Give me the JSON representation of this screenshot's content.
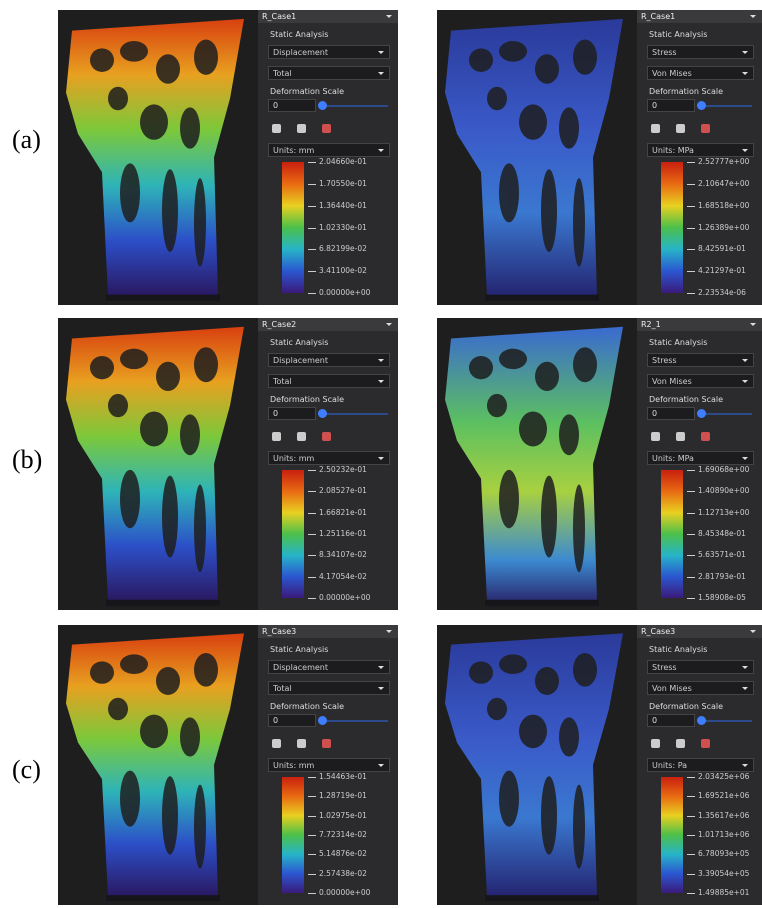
{
  "rows": [
    {
      "label": "(a)",
      "panels": [
        {
          "case": "R_Case1",
          "analysis": "Static Analysis",
          "result": "Displacement",
          "component": "Total",
          "deformation_label": "Deformation Scale",
          "deformation_value": "0",
          "units": "Units: mm",
          "legend": [
            "2.04660e-01",
            "1.70550e-01",
            "1.36440e-01",
            "1.02330e-01",
            "6.82199e-02",
            "3.41100e-02",
            "0.00000e+00"
          ]
        },
        {
          "case": "R_Case1",
          "analysis": "Static Analysis",
          "result": "Stress",
          "component": "Von Mises",
          "deformation_label": "Deformation Scale",
          "deformation_value": "0",
          "units": "Units: MPa",
          "legend": [
            "2.52777e+00",
            "2.10647e+00",
            "1.68518e+00",
            "1.26389e+00",
            "8.42591e-01",
            "4.21297e-01",
            "2.23534e-06"
          ]
        }
      ]
    },
    {
      "label": "(b)",
      "panels": [
        {
          "case": "R_Case2",
          "analysis": "Static Analysis",
          "result": "Displacement",
          "component": "Total",
          "deformation_label": "Deformation Scale",
          "deformation_value": "0",
          "units": "Units: mm",
          "legend": [
            "2.50232e-01",
            "2.08527e-01",
            "1.66821e-01",
            "1.25116e-01",
            "8.34107e-02",
            "4.17054e-02",
            "0.00000e+00"
          ]
        },
        {
          "case": "R2_1",
          "analysis": "Static Analysis",
          "result": "Stress",
          "component": "Von Mises",
          "deformation_label": "Deformation Scale",
          "deformation_value": "0",
          "units": "Units: MPa",
          "legend": [
            "1.69068e+00",
            "1.40890e+00",
            "1.12713e+00",
            "8.45348e-01",
            "5.63571e-01",
            "2.81793e-01",
            "1.58908e-05"
          ]
        }
      ]
    },
    {
      "label": "(c)",
      "panels": [
        {
          "case": "R_Case3",
          "analysis": "Static Analysis",
          "result": "Displacement",
          "component": "Total",
          "deformation_label": "Deformation Scale",
          "deformation_value": "0",
          "units": "Units: mm",
          "legend": [
            "1.54463e-01",
            "1.28719e-01",
            "1.02975e-01",
            "7.72314e-02",
            "5.14876e-02",
            "2.57438e-02",
            "0.00000e+00"
          ]
        },
        {
          "case": "R_Case3",
          "analysis": "Static Analysis",
          "result": "Stress",
          "component": "Von Mises",
          "deformation_label": "Deformation Scale",
          "deformation_value": "0",
          "units": "Units: Pa",
          "legend": [
            "2.03425e+06",
            "1.69521e+06",
            "1.35617e+06",
            "1.01713e+06",
            "6.78093e+05",
            "3.39054e+05",
            "1.49885e+01"
          ]
        }
      ]
    }
  ]
}
